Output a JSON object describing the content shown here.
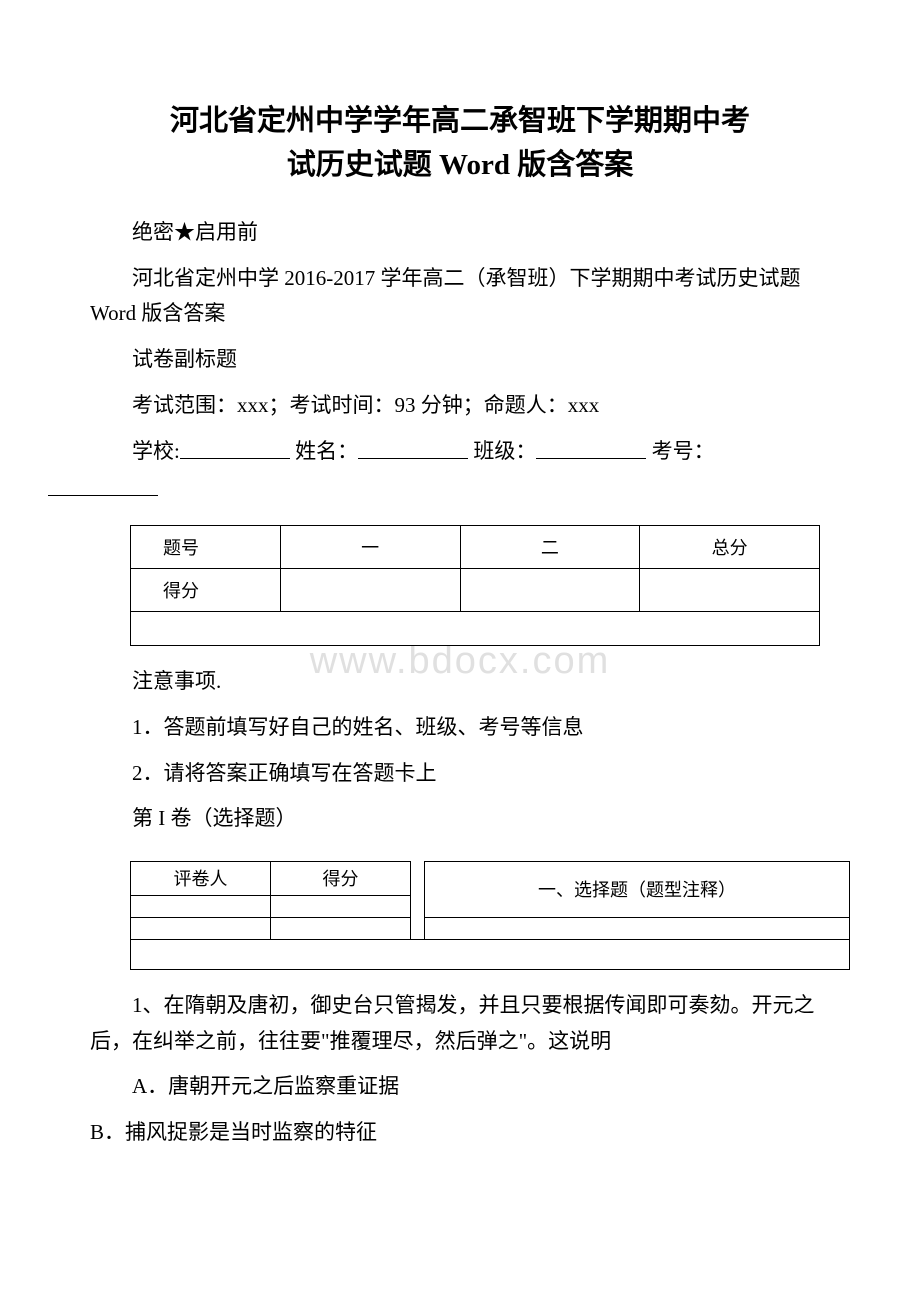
{
  "title_line1": "河北省定州中学学年高二承智班下学期期中考",
  "title_line2": "试历史试题 Word 版含答案",
  "secrecy": "绝密★启用前",
  "subtitle_line1": "河北省定州中学 2016-2017 学年高二（承智班）下学期期中考试历史试题 Word 版含答案",
  "sub_label": "试卷副标题",
  "exam_info": "考试范围：xxx；考试时间：93 分钟；命题人：xxx",
  "form": {
    "school_label": "学校:",
    "name_label": "姓名：",
    "class_label": "班级：",
    "examno_label": "考号："
  },
  "score_table": {
    "row_label": "题号",
    "col1": "一",
    "col2": "二",
    "total": "总分",
    "score_label": "得分"
  },
  "notice_heading": "注意事项.",
  "notice_1": "1．答题前填写好自己的姓名、班级、考号等信息",
  "notice_2": "2．请将答案正确填写在答题卡上",
  "section1_label": "第 I 卷（选择题）",
  "section_table": {
    "grader": "评卷人",
    "score": "得分",
    "desc": "一、选择题（题型注释）"
  },
  "q1_text": "1、在隋朝及唐初，御史台只管揭发，并且只要根据传闻即可奏劾。开元之后，在纠举之前，往往要\"推覆理尽，然后弹之\"。这说明",
  "q1_optA": "A．唐朝开元之后监察重证据",
  "q1_optB": "B．捕风捉影是当时监察的特征",
  "watermark_text": "www.bdocx.com"
}
